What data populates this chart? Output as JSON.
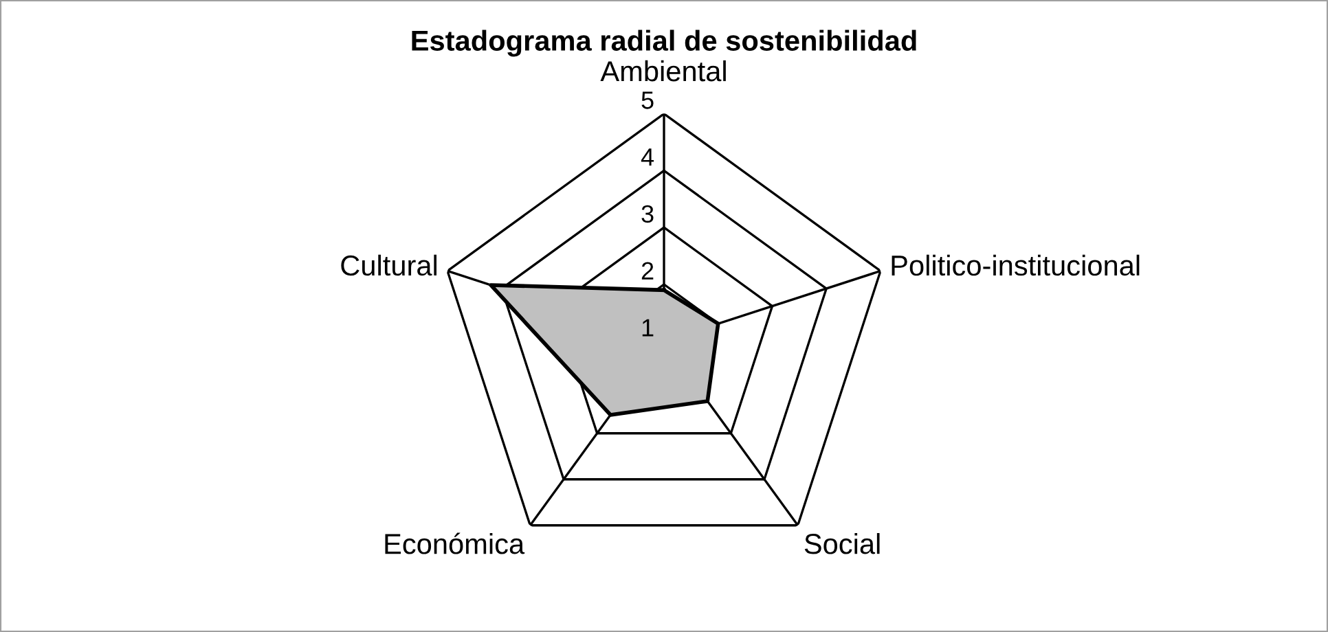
{
  "chart_data": {
    "type": "radar",
    "title": "Estadograma radial de sostenibilidad",
    "categories": [
      "Ambiental",
      "Politico-institucional",
      "Social",
      "Económica",
      "Cultural"
    ],
    "series": [
      {
        "color": "#c0c0c0",
        "values": [
          1.9,
          2.0,
          2.3,
          2.6,
          4.2
        ]
      }
    ],
    "ylim": [
      1,
      5
    ],
    "yticks": [
      1,
      2,
      3,
      4,
      5
    ],
    "grid": true,
    "legend": false
  }
}
